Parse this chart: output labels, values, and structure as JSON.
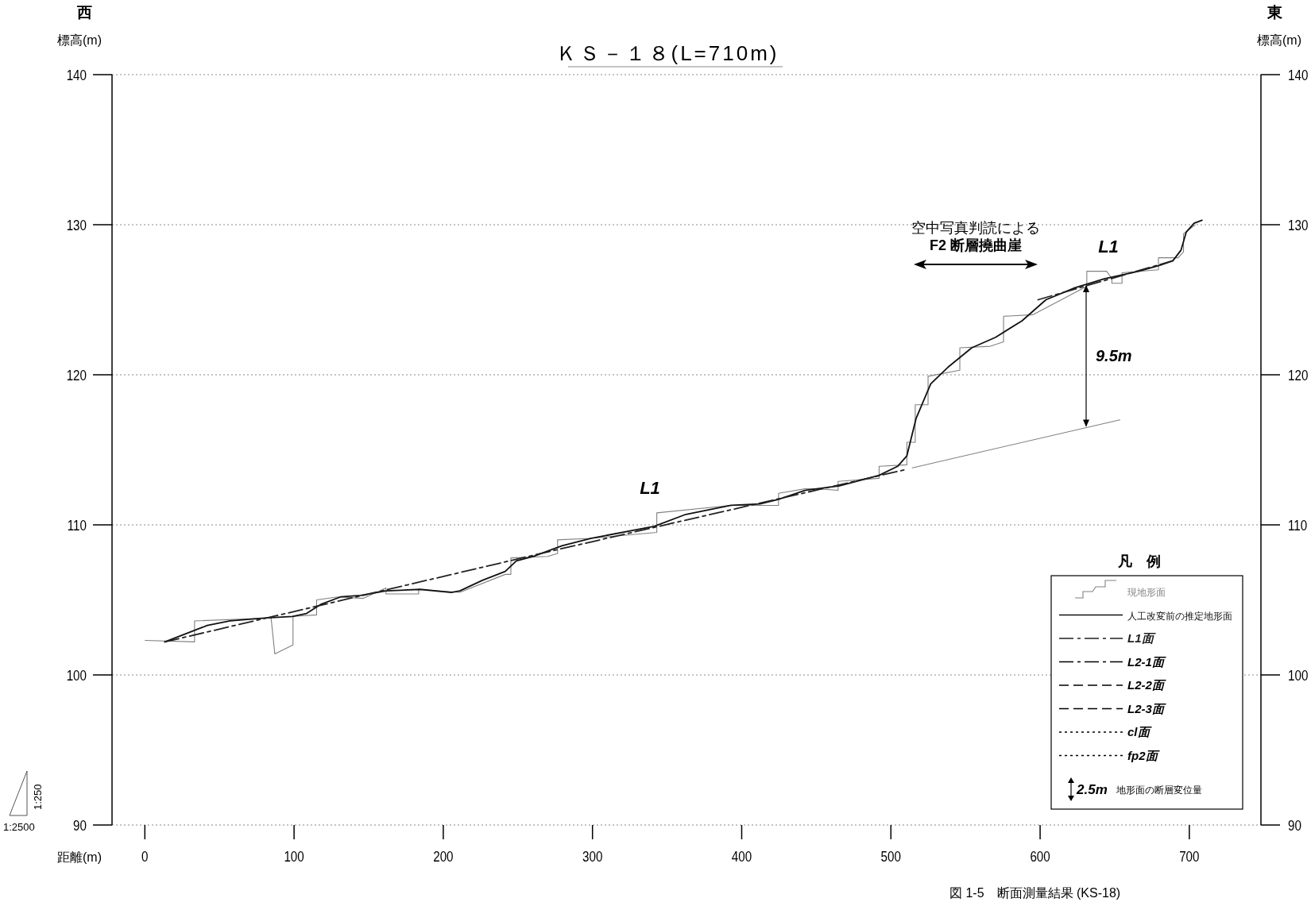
{
  "chart_data": {
    "type": "line",
    "title": "ＫＳ－１８(L=710m)",
    "xlabel": "距離(m)",
    "ylabel": "標高(m)",
    "y2label": "標高(m)",
    "legend_title": "凡　例",
    "xlim": [
      -22,
      748
    ],
    "xticks": [
      0,
      100,
      200,
      300,
      400,
      500,
      600,
      700
    ],
    "ylim": [
      90,
      140
    ],
    "yticks": [
      90,
      100,
      110,
      120,
      130,
      140
    ],
    "y2lim": [
      90,
      140
    ],
    "y2ticks": [
      90,
      100,
      110,
      120,
      130,
      140
    ],
    "grid": "y",
    "legend": "bottom right",
    "marker": "none",
    "series": [
      {
        "name": "現地形面",
        "color": "#808080",
        "type": "step",
        "x": [
          0,
          33.3,
          33.3,
          84.6,
          87.1,
          99.3,
          99.3,
          115.1,
          115.1,
          129.3,
          146.4,
          161.6,
          161.6,
          183.5,
          183.5,
          211.1,
          241.5,
          245.3,
          245.3,
          270,
          276.6,
          276.6,
          298.7,
          343.1,
          343.1,
          392.8,
          424.7,
          424.7,
          442.4,
          451.3,
          464.6,
          464.6,
          492.1,
          492.1,
          510.7,
          510.7,
          516.3,
          516.3,
          524.9,
          524.9,
          546.2,
          546.2,
          566.6,
          575.5,
          575.5,
          595,
          616.3,
          631.3,
          631.3,
          644.6,
          648.1,
          648.1,
          654.9,
          654.9,
          679.3,
          679.3,
          692.5,
          696.1,
          696.1,
          704.1
        ],
        "values": [
          102.3,
          102.2,
          103.6,
          103.8,
          101.4,
          102.0,
          103.9,
          104.0,
          105.0,
          105.2,
          105.1,
          105.8,
          105.4,
          105.4,
          105.7,
          105.5,
          106.7,
          106.7,
          107.8,
          107.9,
          108.1,
          109.0,
          109.1,
          109.5,
          110.8,
          111.3,
          111.3,
          112.1,
          112.4,
          112.4,
          112.3,
          112.9,
          113.1,
          113.9,
          114.0,
          115.5,
          115.5,
          118.0,
          118.0,
          119.9,
          120.3,
          121.8,
          121.9,
          122.2,
          123.9,
          124.0,
          125.1,
          125.9,
          126.9,
          126.9,
          126.4,
          126.1,
          126.1,
          126.8,
          127.0,
          127.8,
          127.8,
          128.2,
          129.4,
          130.0
        ]
      },
      {
        "name": "人工改変前の推定地形面",
        "color": "#111111",
        "line_style": "solid",
        "x": [
          13.4,
          41.9,
          57.1,
          81.8,
          98.9,
          108.4,
          117.9,
          131.2,
          144.5,
          161.6,
          184.5,
          205.4,
          211.1,
          226.2,
          241.5,
          249,
          260.5,
          279.5,
          298.7,
          341.3,
          362.6,
          392.8,
          412.3,
          424.7,
          442.4,
          465.5,
          492.1,
          504.5,
          510.7,
          516.9,
          526.7,
          538.2,
          554.2,
          570.2,
          587.9,
          603.9,
          623.4,
          643,
          666,
          680.2,
          689,
          694.4,
          697.9,
          703.2,
          708.5
        ],
        "values": [
          102.2,
          103.3,
          103.6,
          103.8,
          103.9,
          104.1,
          104.7,
          105.2,
          105.3,
          105.6,
          105.7,
          105.5,
          105.6,
          106.3,
          106.9,
          107.6,
          107.9,
          108.6,
          109.1,
          109.9,
          110.7,
          111.3,
          111.4,
          111.7,
          112.3,
          112.6,
          113.3,
          113.9,
          114.6,
          117.1,
          119.4,
          120.5,
          121.8,
          122.5,
          123.6,
          125.0,
          125.8,
          126.4,
          126.9,
          127.3,
          127.6,
          128.3,
          129.5,
          130.1,
          130.3
        ]
      },
      {
        "name": "L1面",
        "color": "#222222",
        "line_style": "dashdot",
        "x": [
          13.4,
          270,
          510.7,
          555,
          598.6,
          689
        ],
        "values": [
          102.2,
          108.2,
          113.7,
          null,
          125.0,
          127.6
        ]
      },
      {
        "color": "#808080",
        "line_style": "solid",
        "x": [
          514.3,
          653.5
        ],
        "values": [
          113.8,
          117.0
        ]
      },
      {
        "name": "L2-1面",
        "color": "#000000",
        "line_style": "dashdot"
      },
      {
        "name": "L2-2面",
        "color": "#000000",
        "line_style": "dashed"
      },
      {
        "name": "L2-3面",
        "color": "#000000",
        "line_style": "dashed"
      },
      {
        "name": "cl面",
        "color": "#000000",
        "line_style": "dotted"
      },
      {
        "name": "fp2面",
        "color": "#000000",
        "line_style": "dotted"
      }
    ],
    "annotations": [
      "L1",
      "L1",
      "9.5m",
      "空中写真判読による\nF2 断層撓曲崖",
      "西",
      "東",
      "1:250",
      "1:2500",
      "2.5m",
      "地形面の断層変位量",
      "図 1-5　断面測量結果 (KS-18)"
    ]
  }
}
